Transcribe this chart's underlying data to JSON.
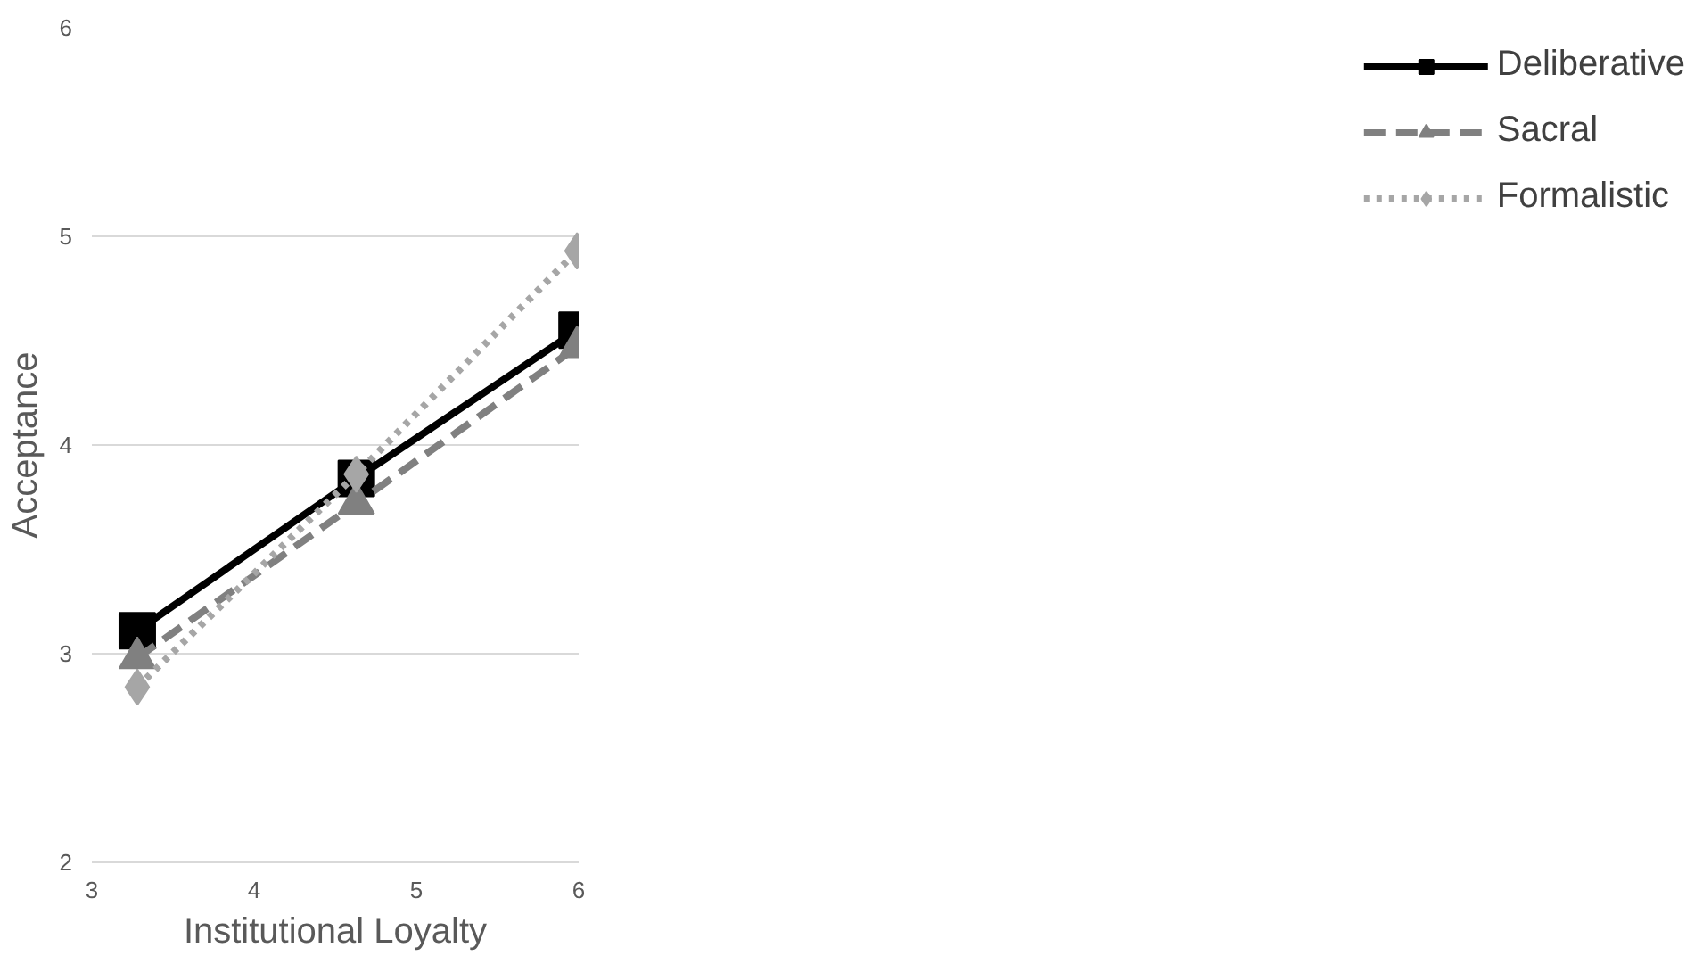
{
  "chart_data": {
    "type": "line",
    "xlabel": "Institutional Loyalty",
    "ylabel": "Acceptance",
    "x": [
      3.28,
      4.63,
      5.99
    ],
    "series": [
      {
        "name": "Deliberative",
        "color": "#000000",
        "values": [
          3.11,
          3.84,
          4.55
        ],
        "marker": "square",
        "line_style": "solid"
      },
      {
        "name": "Sacral",
        "color": "#808080",
        "values": [
          2.98,
          3.72,
          4.47
        ],
        "marker": "triangle",
        "line_style": "dashed"
      },
      {
        "name": "Formalistic",
        "color": "#a6a6a6",
        "values": [
          2.84,
          3.86,
          4.93
        ],
        "marker": "diamond",
        "line_style": "dotted"
      }
    ],
    "xlim": [
      3,
      6
    ],
    "xticks": [
      3,
      4,
      5,
      6
    ],
    "ylim": [
      2,
      6
    ],
    "yticks": [
      2,
      3,
      4,
      5,
      6
    ],
    "grid": "y",
    "legend": "right"
  }
}
